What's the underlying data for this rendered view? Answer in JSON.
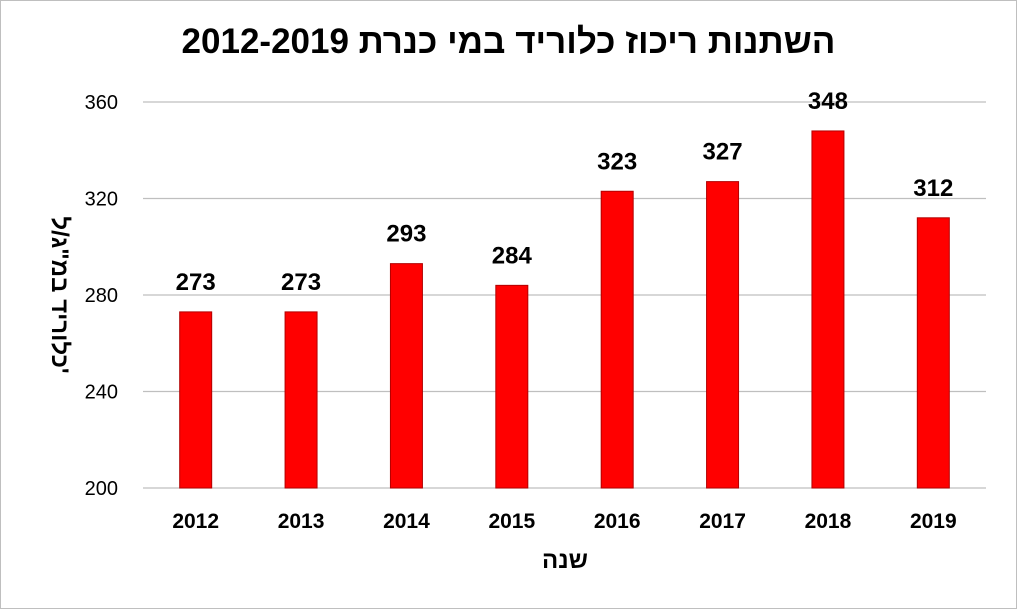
{
  "chart_data": {
    "type": "bar",
    "title": "השתנות ריכוז כלוריד במי כנרת 2012-2019",
    "xlabel": "שנה",
    "ylabel": "כלוריד במ\"ג/ל'",
    "categories": [
      "2012",
      "2013",
      "2014",
      "2015",
      "2016",
      "2017",
      "2018",
      "2019"
    ],
    "values": [
      273,
      273,
      293,
      284,
      323,
      327,
      348,
      312
    ],
    "data_labels": [
      "273",
      "273",
      "293",
      "284",
      "323",
      "327",
      "348",
      "312"
    ],
    "ylim": [
      200,
      360
    ],
    "yticks": [
      "200",
      "240",
      "280",
      "320",
      "360"
    ],
    "grid": true,
    "legend": "none",
    "bar_color": "#ff0000"
  }
}
